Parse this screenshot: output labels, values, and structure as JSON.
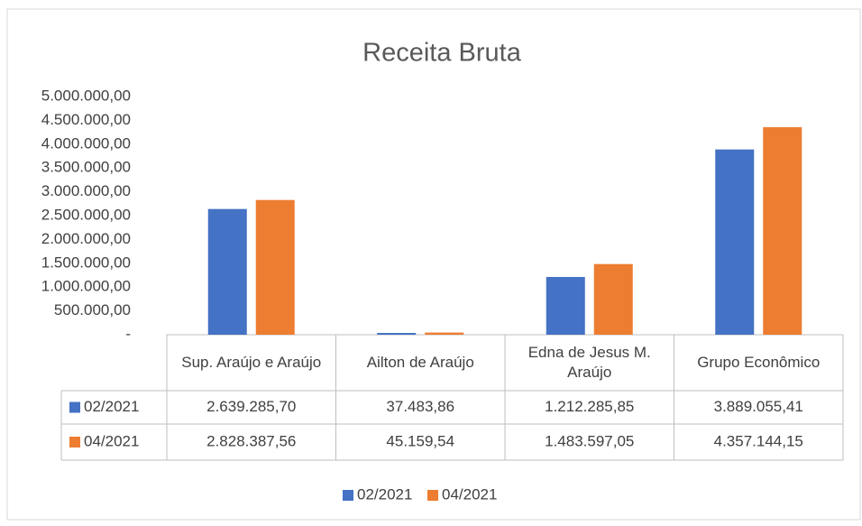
{
  "chart_data": {
    "type": "bar",
    "title": "Receita Bruta",
    "categories": [
      "Sup. Araújo e Araújo",
      "Ailton de Araújo",
      "Edna de Jesus M. Araújo",
      "Grupo Econômico"
    ],
    "series": [
      {
        "name": "02/2021",
        "color": "#4472c4",
        "values": [
          2639285.7,
          37483.86,
          1212285.85,
          3889055.41
        ],
        "value_labels": [
          "2.639.285,70",
          "37.483,86",
          "1.212.285,85",
          "3.889.055,41"
        ]
      },
      {
        "name": "04/2021",
        "color": "#ed7d31",
        "values": [
          2828387.56,
          45159.54,
          1483597.05,
          4357144.15
        ],
        "value_labels": [
          "2.828.387,56",
          "45.159,54",
          "1.483.597,05",
          "4.357.144,15"
        ]
      }
    ],
    "ylim": [
      0,
      5000000
    ],
    "yticks": [
      {
        "value": 0,
        "label": "-"
      },
      {
        "value": 500000,
        "label": "500.000,00"
      },
      {
        "value": 1000000,
        "label": "1.000.000,00"
      },
      {
        "value": 1500000,
        "label": "1.500.000,00"
      },
      {
        "value": 2000000,
        "label": "2.000.000,00"
      },
      {
        "value": 2500000,
        "label": "2.500.000,00"
      },
      {
        "value": 3000000,
        "label": "3.000.000,00"
      },
      {
        "value": 3500000,
        "label": "3.500.000,00"
      },
      {
        "value": 4000000,
        "label": "4.000.000,00"
      },
      {
        "value": 4500000,
        "label": "4.500.000,00"
      },
      {
        "value": 5000000,
        "label": "5.000.000,00"
      }
    ],
    "grid": false,
    "legend": "bottom"
  }
}
